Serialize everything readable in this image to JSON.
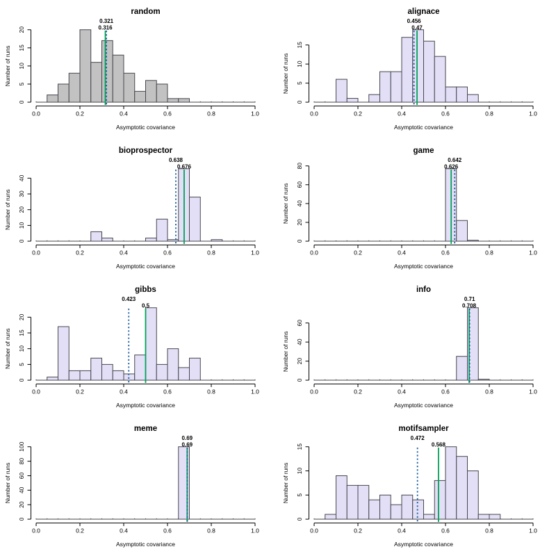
{
  "figure": {
    "background": "#ffffff",
    "grid": {
      "rows": 4,
      "cols": 2
    }
  },
  "axes": {
    "xlabel": "Asymptotic covariance",
    "ylabel": "Number of runs",
    "xtick_labels": [
      "0.0",
      "0.2",
      "0.4",
      "0.6",
      "0.8",
      "1.0"
    ],
    "xlim": [
      0.0,
      1.0
    ]
  },
  "colors": {
    "background": "#ffffff",
    "gray_fill": "#c2c2c2",
    "lavender_fill": "#e2dff6",
    "bar_border": "#46464e",
    "axis": "#000000",
    "text": "#000000",
    "dashed_line": "#1e5fa0",
    "solid_line": "#00a257"
  },
  "chart_data": [
    {
      "type": "bar",
      "subtype": "histogram",
      "title": "random",
      "fill": "#c2c2c2",
      "bin_start": 0.05,
      "bin_width": 0.05,
      "counts": [
        2,
        5,
        8,
        20,
        11,
        17,
        13,
        8,
        3,
        6,
        5,
        1,
        1
      ],
      "ylim": [
        0,
        20
      ],
      "yticks": [
        0,
        5,
        10,
        15,
        20
      ],
      "dashed_line": {
        "value": 0.321,
        "label": "0.321"
      },
      "solid_line": {
        "value": 0.316,
        "label": "0.316"
      }
    },
    {
      "type": "bar",
      "subtype": "histogram",
      "title": "alignace",
      "fill": "#e2dff6",
      "bin_start": 0.1,
      "bin_width": 0.05,
      "counts": [
        6,
        1,
        0,
        2,
        8,
        8,
        17,
        19,
        16,
        12,
        4,
        4,
        2
      ],
      "ylim": [
        0,
        19
      ],
      "yticks": [
        0,
        5,
        10,
        15
      ],
      "dashed_line": {
        "value": 0.456,
        "label": "0.456"
      },
      "solid_line": {
        "value": 0.47,
        "label": "0.47"
      }
    },
    {
      "type": "bar",
      "subtype": "histogram",
      "title": "bioprospector",
      "fill": "#e2dff6",
      "bin_start": 0.25,
      "bin_width": 0.05,
      "counts": [
        6,
        2,
        0,
        0,
        0,
        2,
        14,
        1,
        46,
        28,
        0,
        1
      ],
      "ylim": [
        0,
        46
      ],
      "yticks": [
        0,
        10,
        20,
        30,
        40
      ],
      "dashed_line": {
        "value": 0.638,
        "label": "0.638"
      },
      "solid_line": {
        "value": 0.676,
        "label": "0.676"
      }
    },
    {
      "type": "bar",
      "subtype": "histogram",
      "title": "game",
      "fill": "#e2dff6",
      "bin_start": 0.6,
      "bin_width": 0.05,
      "counts": [
        77,
        22,
        1
      ],
      "ylim": [
        0,
        77
      ],
      "yticks": [
        0,
        20,
        40,
        60,
        80
      ],
      "dashed_line": {
        "value": 0.642,
        "label": "0.642"
      },
      "solid_line": {
        "value": 0.626,
        "label": "0.626"
      }
    },
    {
      "type": "bar",
      "subtype": "histogram",
      "title": "gibbs",
      "fill": "#e2dff6",
      "bin_start": 0.05,
      "bin_width": 0.05,
      "counts": [
        1,
        17,
        3,
        3,
        7,
        5,
        3,
        2,
        8,
        23,
        5,
        10,
        4,
        7
      ],
      "ylim": [
        0,
        23
      ],
      "yticks": [
        0,
        5,
        10,
        15,
        20
      ],
      "dashed_line": {
        "value": 0.423,
        "label": "0.423"
      },
      "solid_line": {
        "value": 0.5,
        "label": "0.5"
      }
    },
    {
      "type": "bar",
      "subtype": "histogram",
      "title": "info",
      "fill": "#e2dff6",
      "bin_start": 0.65,
      "bin_width": 0.05,
      "counts": [
        25,
        76,
        1
      ],
      "ylim": [
        0,
        76
      ],
      "yticks": [
        0,
        20,
        40,
        60
      ],
      "dashed_line": {
        "value": 0.71,
        "label": "0.71"
      },
      "solid_line": {
        "value": 0.708,
        "label": "0.708"
      }
    },
    {
      "type": "bar",
      "subtype": "histogram",
      "title": "meme",
      "fill": "#e2dff6",
      "bin_start": 0.65,
      "bin_width": 0.05,
      "counts": [
        100
      ],
      "ylim": [
        0,
        100
      ],
      "yticks": [
        0,
        20,
        40,
        60,
        80,
        100
      ],
      "dashed_line": {
        "value": 0.69,
        "label": "0.69"
      },
      "solid_line": {
        "value": 0.69,
        "label": "0.69"
      }
    },
    {
      "type": "bar",
      "subtype": "histogram",
      "title": "motifsampler",
      "fill": "#e2dff6",
      "bin_start": 0.05,
      "bin_width": 0.05,
      "counts": [
        1,
        9,
        7,
        7,
        4,
        5,
        3,
        5,
        4,
        1,
        8,
        15,
        13,
        10,
        1,
        1
      ],
      "ylim": [
        0,
        15
      ],
      "yticks": [
        0,
        5,
        10,
        15
      ],
      "dashed_line": {
        "value": 0.472,
        "label": "0.472"
      },
      "solid_line": {
        "value": 0.568,
        "label": "0.568"
      }
    }
  ]
}
